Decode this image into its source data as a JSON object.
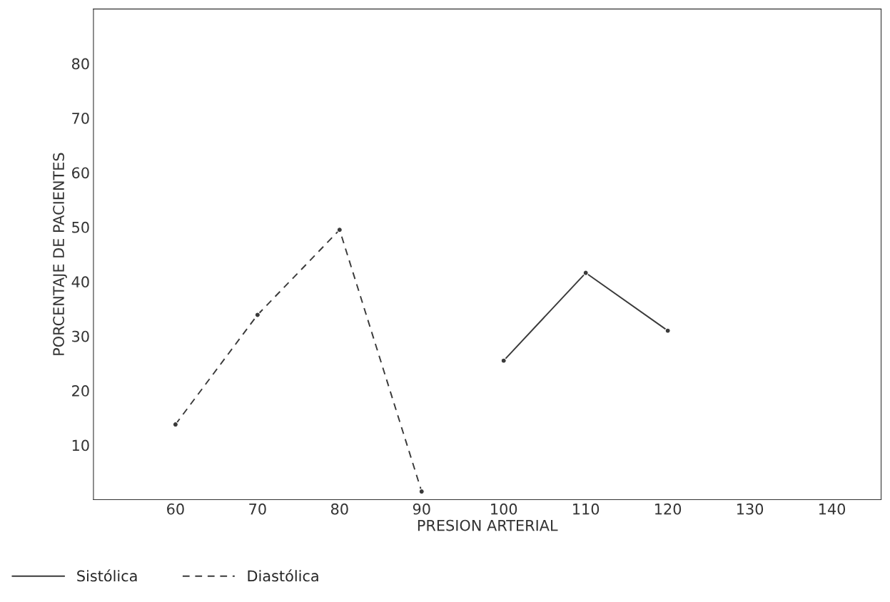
{
  "chart_data": {
    "type": "line",
    "xlabel": "PRESION ARTERIAL",
    "ylabel": "PORCENTAJE DE PACIENTES",
    "series": [
      {
        "name": "Sistólica",
        "color": "#3a3a3a",
        "line_style": "solid",
        "x": [
          100,
          110,
          120
        ],
        "values": [
          25.5,
          41.6,
          31
        ]
      },
      {
        "name": "Diastólica",
        "color": "#3a3a3a",
        "line_style": "dashed",
        "x": [
          60,
          70,
          80,
          90
        ],
        "values": [
          13.8,
          33.9,
          49.5,
          1.5
        ]
      }
    ],
    "xlim": [
      50,
      146
    ],
    "ylim": [
      0,
      90
    ],
    "xticks": [
      60,
      70,
      80,
      90,
      100,
      110,
      120,
      130,
      140
    ],
    "yticks": [
      10,
      20,
      30,
      40,
      50,
      60,
      70,
      80
    ],
    "marker": "circle",
    "grid": false,
    "legend": "bottom left"
  }
}
